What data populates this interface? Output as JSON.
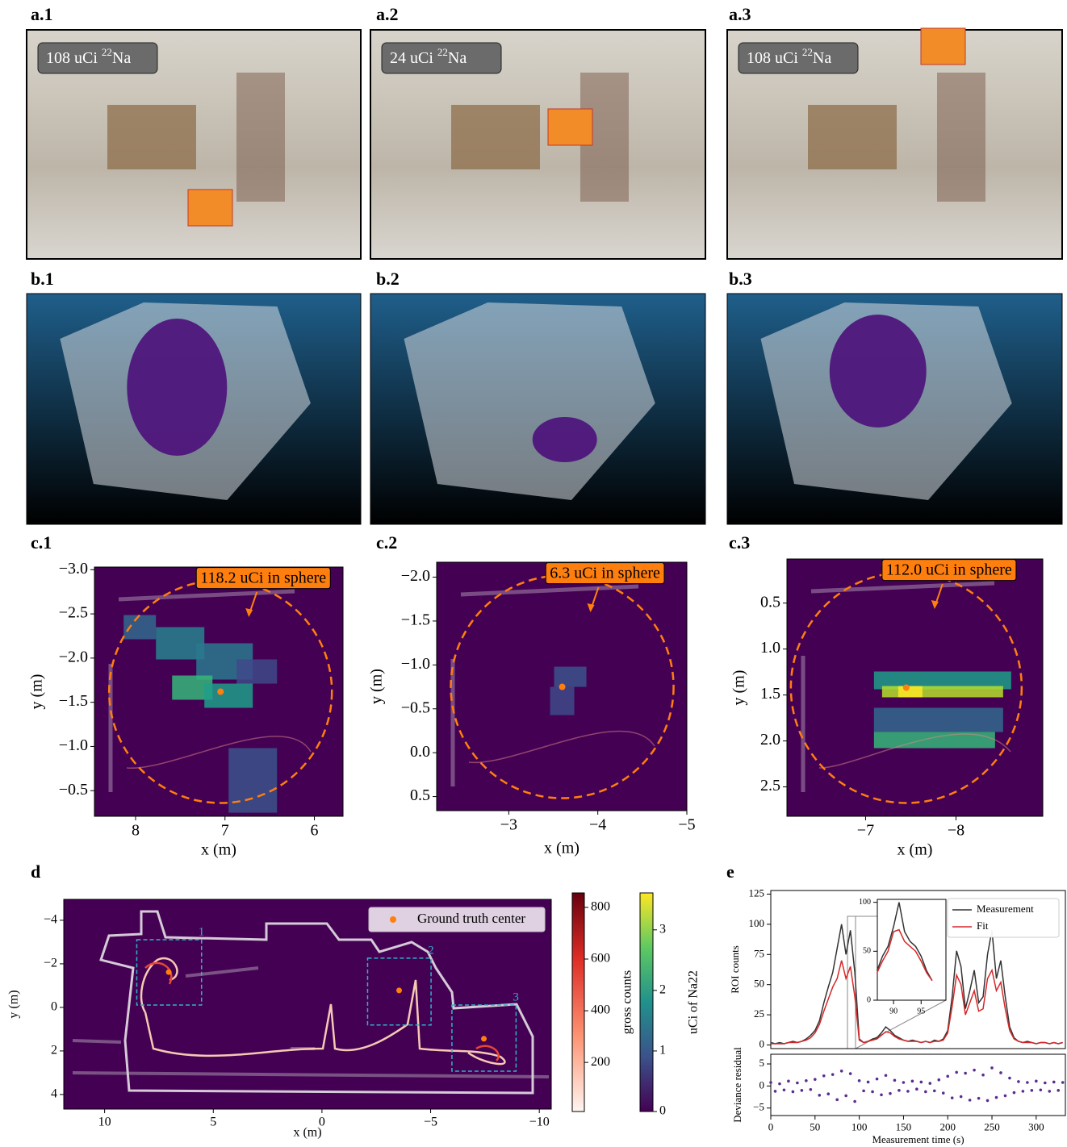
{
  "panels": [
    "a.1",
    "a.2",
    "a.3",
    "b.1",
    "b.2",
    "b.3",
    "c.1",
    "c.2",
    "c.3",
    "d",
    "e"
  ],
  "photos": [
    {
      "amount": "108 uCi",
      "mass": "22",
      "element": "Na"
    },
    {
      "amount": "24 uCi",
      "mass": "22",
      "element": "Na"
    },
    {
      "amount": "108 uCi",
      "mass": "22",
      "element": "Na"
    }
  ],
  "chart_data": [
    {
      "type": "scatter",
      "annotation": "118.2 uCi in sphere",
      "x_label": "x (m)",
      "y_label": "y (m)",
      "x": [
        7.05
      ],
      "values": [
        -1.62
      ],
      "color": "#ff7f0e",
      "xlim": [
        8.46,
        5.68
      ],
      "ylim": [
        -0.21,
        -3.03
      ],
      "xticks": [
        8,
        7,
        6
      ],
      "yticks": [
        {
          "value": -3,
          "label": "−3.0"
        },
        {
          "value": -2.5,
          "label": "−2.5"
        },
        {
          "value": -2,
          "label": "−2.0"
        },
        {
          "value": -1.5,
          "label": "−1.5"
        },
        {
          "value": -1,
          "label": "−1.0"
        },
        {
          "value": -0.5,
          "label": "−0.5"
        }
      ]
    },
    {
      "type": "scatter",
      "annotation": "6.3 uCi in sphere",
      "x_label": "x (m)",
      "y_label": "y (m)",
      "x": [
        -3.6
      ],
      "values": [
        -0.75
      ],
      "color": "#ff7f0e",
      "xlim": [
        -2.19,
        -5
      ],
      "ylim": [
        0.66,
        -2.17
      ],
      "xticks": [
        {
          "value": -3,
          "label": "−3"
        },
        {
          "value": -4,
          "label": "−4"
        },
        {
          "value": -5,
          "label": "−5"
        }
      ],
      "yticks": [
        {
          "value": -2,
          "label": "−2.0"
        },
        {
          "value": -1.5,
          "label": "−1.5"
        },
        {
          "value": -1,
          "label": "−1.0"
        },
        {
          "value": -0.5,
          "label": "−0.5"
        },
        {
          "value": 0,
          "label": "0.0"
        },
        0.5
      ]
    },
    {
      "type": "scatter",
      "annotation": "112.0 uCi in sphere",
      "x_label": "x (m)",
      "y_label": "y (m)",
      "x": [
        -7.45
      ],
      "values": [
        1.42
      ],
      "color": "#ff7f0e",
      "xlim": [
        -6.13,
        -8.96
      ],
      "ylim": [
        2.82,
        0.02
      ],
      "xticks": [
        {
          "value": -7,
          "label": "−7"
        },
        {
          "value": -8,
          "label": "−8"
        }
      ],
      "yticks": [
        0.5,
        {
          "value": 1,
          "label": "1.0"
        },
        1.5,
        {
          "value": 2,
          "label": "2.0"
        },
        2.5
      ]
    },
    {
      "type": "scatter",
      "x_label": "x (m)",
      "y_label": "y (m)",
      "x": [
        7.05,
        -3.55,
        -7.45
      ],
      "series": [
        {
          "name": "Ground truth center",
          "color": "#ff7f0e",
          "values": [
            -1.62,
            -0.78,
            1.44
          ]
        }
      ],
      "legend": "upper right",
      "xlim": [
        11.88,
        -10.55
      ],
      "ylim": [
        4.67,
        -4.96
      ],
      "xticks": [
        10,
        5,
        0,
        {
          "value": -5,
          "label": "−5"
        },
        {
          "value": -10,
          "label": "−10"
        }
      ],
      "yticks": [
        {
          "value": -4,
          "label": "−4"
        },
        {
          "value": -2,
          "label": "−2"
        },
        0,
        2,
        4
      ],
      "regions": [
        {
          "label": "1",
          "x": [
            8.52,
            5.54
          ],
          "y": [
            -3.11,
            -0.11
          ]
        },
        {
          "label": "2",
          "x": [
            -2.1,
            -5.02
          ],
          "y": [
            -2.26,
            0.81
          ]
        },
        {
          "label": "3",
          "x": [
            -5.98,
            -8.93
          ],
          "y": [
            -0.11,
            2.93
          ]
        }
      ],
      "colorbars": [
        {
          "label": "gross counts",
          "lim": [
            10,
            856
          ],
          "ticks": [
            200,
            400,
            600,
            800
          ]
        },
        {
          "label": "uCi of Na22",
          "lim": [
            0,
            3.61
          ],
          "ticks": [
            0,
            1,
            2,
            3
          ]
        }
      ]
    },
    {
      "type": "line",
      "y_label": "ROI counts",
      "legend": "upper right",
      "xlim": [
        0,
        333
      ],
      "ylim": [
        -3,
        128
      ],
      "yticks": [
        0,
        25,
        50,
        75,
        100,
        125
      ],
      "x": [
        0,
        5,
        10,
        15,
        20,
        25,
        30,
        35,
        40,
        45,
        50,
        55,
        60,
        65,
        70,
        75,
        80,
        85,
        90,
        95,
        100,
        105,
        110,
        115,
        120,
        125,
        130,
        135,
        140,
        145,
        150,
        155,
        160,
        165,
        170,
        175,
        180,
        185,
        190,
        195,
        200,
        205,
        210,
        215,
        220,
        225,
        230,
        235,
        240,
        245,
        250,
        255,
        260,
        265,
        270,
        275,
        280,
        285,
        290,
        295,
        300,
        305,
        310,
        315,
        320,
        325,
        330
      ],
      "series": [
        {
          "name": "Measurement",
          "color": "#333333",
          "values": [
            2,
            1,
            2,
            1,
            2,
            3,
            2,
            3,
            5,
            8,
            12,
            20,
            35,
            48,
            60,
            80,
            100,
            75,
            95,
            60,
            5,
            2,
            3,
            5,
            6,
            10,
            15,
            12,
            8,
            6,
            4,
            3,
            4,
            3,
            2,
            3,
            2,
            4,
            3,
            5,
            12,
            40,
            78,
            65,
            30,
            45,
            62,
            35,
            40,
            75,
            95,
            55,
            70,
            40,
            15,
            6,
            3,
            2,
            3,
            2,
            1,
            2,
            2,
            1,
            2,
            1,
            2
          ]
        },
        {
          "name": "Fit",
          "color": "#d62728",
          "values": [
            1,
            1,
            1,
            1,
            2,
            2,
            2,
            3,
            4,
            6,
            10,
            17,
            28,
            38,
            48,
            55,
            70,
            55,
            65,
            40,
            4,
            2,
            3,
            4,
            5,
            8,
            11,
            10,
            7,
            5,
            4,
            3,
            3,
            3,
            2,
            3,
            2,
            3,
            3,
            4,
            10,
            32,
            58,
            50,
            25,
            35,
            45,
            28,
            30,
            55,
            62,
            45,
            52,
            30,
            12,
            5,
            3,
            2,
            2,
            2,
            1,
            2,
            2,
            1,
            2,
            1,
            2
          ]
        }
      ]
    },
    {
      "type": "line",
      "xlim": [
        87.06,
        99.5
      ],
      "ylim": [
        0,
        103
      ],
      "xticks": [
        90,
        95
      ],
      "yticks": [
        0,
        50,
        100
      ],
      "x": [
        87,
        88,
        89,
        90,
        91,
        92,
        93,
        94,
        95,
        96,
        97
      ],
      "series": [
        {
          "color": "#333333",
          "values": [
            30,
            45,
            55,
            75,
            100,
            70,
            60,
            55,
            45,
            30,
            20
          ]
        },
        {
          "color": "#d62728",
          "values": [
            28,
            40,
            50,
            70,
            72,
            60,
            55,
            50,
            40,
            28,
            20
          ]
        }
      ]
    },
    {
      "type": "scatter",
      "x_label": "Measurement time (s)",
      "y_label": "Deviance residual",
      "color": "#5b2c8f",
      "xlim": [
        0,
        333
      ],
      "ylim": [
        -6.7,
        7.2
      ],
      "xticks": [
        0,
        50,
        100,
        150,
        200,
        250,
        300
      ],
      "yticks": [
        5,
        0,
        {
          "value": -5,
          "label": "−5"
        }
      ],
      "x": [
        0,
        5,
        10,
        15,
        20,
        25,
        30,
        35,
        40,
        45,
        50,
        55,
        60,
        65,
        70,
        75,
        80,
        85,
        90,
        95,
        100,
        105,
        110,
        115,
        120,
        125,
        130,
        135,
        140,
        145,
        150,
        155,
        160,
        165,
        170,
        175,
        180,
        185,
        190,
        195,
        200,
        205,
        210,
        215,
        220,
        225,
        230,
        235,
        240,
        245,
        250,
        255,
        260,
        265,
        270,
        275,
        280,
        285,
        290,
        295,
        300,
        305,
        310,
        315,
        320,
        325,
        330
      ],
      "values": [
        0.8,
        -1.2,
        0.5,
        -0.9,
        1.1,
        -1.3,
        0.7,
        -1,
        1.2,
        -0.8,
        1.5,
        -2.1,
        2.3,
        -1.8,
        2.6,
        -3.1,
        3.4,
        -2.2,
        2.8,
        -3.5,
        1.2,
        -1.1,
        0.9,
        -1.3,
        1.6,
        -2,
        2.4,
        -1.7,
        1.3,
        -1,
        0.8,
        -1.2,
        1.1,
        -0.7,
        0.9,
        -1.3,
        0.6,
        -1.1,
        1.4,
        -1.6,
        2.2,
        -2.7,
        3.1,
        -2.4,
        2.9,
        -3.2,
        3.6,
        -2.8,
        2.5,
        -3.3,
        4.1,
        -2.6,
        3,
        -2.2,
        1.8,
        -1.5,
        1,
        -1.2,
        0.8,
        -1,
        1.1,
        -0.9,
        0.7,
        -1.2,
        0.9,
        -1,
        0.8
      ]
    }
  ]
}
